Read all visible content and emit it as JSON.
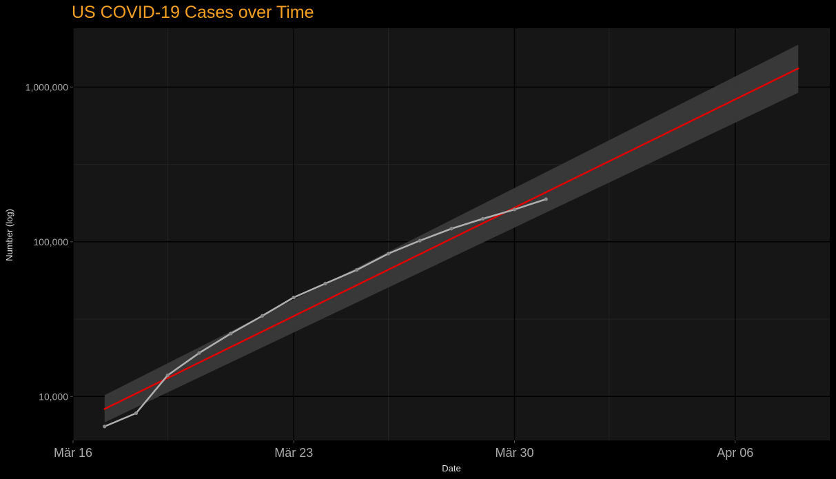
{
  "chart_data": {
    "type": "line",
    "title": "US COVID-19 Cases over Time",
    "xlabel": "Date",
    "ylabel": "Number (log)",
    "y_scale": "log",
    "ylim": [
      5200,
      2400000
    ],
    "xlim": [
      "2020-03-16",
      "2020-04-09"
    ],
    "x_ticks": [
      {
        "date": "2020-03-16",
        "label": "Mär 16"
      },
      {
        "date": "2020-03-23",
        "label": "Mär 23"
      },
      {
        "date": "2020-03-30",
        "label": "Mär 30"
      },
      {
        "date": "2020-04-06",
        "label": "Apr 06"
      }
    ],
    "y_ticks": [
      {
        "value": 10000,
        "label": "10,000"
      },
      {
        "value": 100000,
        "label": "100,000"
      },
      {
        "value": 1000000,
        "label": "1,000,000"
      }
    ],
    "grid": true,
    "series": [
      {
        "kind": "observed",
        "x": [
          "2020-03-17",
          "2020-03-18",
          "2020-03-19",
          "2020-03-20",
          "2020-03-21",
          "2020-03-22",
          "2020-03-23",
          "2020-03-24",
          "2020-03-25",
          "2020-03-26",
          "2020-03-27",
          "2020-03-28",
          "2020-03-29",
          "2020-03-30",
          "2020-03-31"
        ],
        "values": [
          6400,
          7800,
          13700,
          19100,
          25500,
          33200,
          43700,
          53700,
          65800,
          83800,
          101700,
          121500,
          140900,
          161800,
          188500
        ],
        "color": "#b0b0b0"
      },
      {
        "kind": "fit",
        "x": [
          "2020-03-17",
          "2020-04-08"
        ],
        "values": [
          8300,
          1320000
        ],
        "ci_lower": [
          6800,
          920000
        ],
        "ci_upper": [
          10200,
          1880000
        ],
        "color": "#e00000",
        "band_color": "#3a3a3a"
      }
    ]
  },
  "colors": {
    "background": "#000000",
    "panel": "#161616",
    "grid_major": "#000000",
    "grid_minor": "#222222",
    "title": "#f5a021",
    "text": "#e0e0e0",
    "tick_text": "#aaaaaa"
  }
}
